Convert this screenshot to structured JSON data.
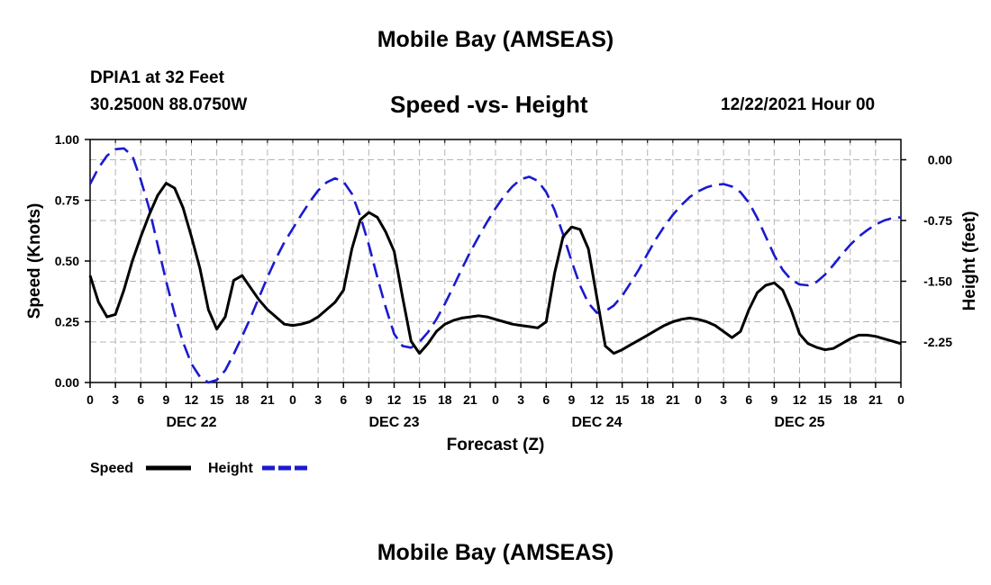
{
  "header": {
    "title": "Mobile Bay (AMSEAS)",
    "station": "DPIA1 at 32 Feet",
    "coords": "30.2500N  88.0750W",
    "subtitle": "Speed -vs- Height",
    "datetime": "12/22/2021 Hour 00"
  },
  "footer": {
    "title": "Mobile Bay (AMSEAS)"
  },
  "colors": {
    "speed": "#000000",
    "height": "#1a1ad0",
    "grid": "#b4b4b4"
  },
  "chart_data": {
    "type": "line",
    "title": "Speed -vs- Height",
    "xlabel": "Forecast (Z)",
    "ylabel": "Speed (Knots)",
    "y2label": "Height (feet)",
    "xlim": [
      0,
      96
    ],
    "ylim": [
      0,
      1
    ],
    "y2lim": [
      -2.75,
      0.25
    ],
    "x_ticks": [
      0,
      3,
      6,
      9,
      12,
      15,
      18,
      21,
      24,
      27,
      30,
      33,
      36,
      39,
      42,
      45,
      48,
      51,
      54,
      57,
      60,
      63,
      66,
      69,
      72,
      75,
      78,
      81,
      84,
      87,
      90,
      93,
      96
    ],
    "x_tick_labels": [
      "0",
      "3",
      "6",
      "9",
      "12",
      "15",
      "18",
      "21",
      "0",
      "3",
      "6",
      "9",
      "12",
      "15",
      "18",
      "21",
      "0",
      "3",
      "6",
      "9",
      "12",
      "15",
      "18",
      "21",
      "0",
      "3",
      "6",
      "9",
      "12",
      "15",
      "18",
      "21",
      "0"
    ],
    "day_labels": [
      {
        "x": 12,
        "label": "DEC 22"
      },
      {
        "x": 36,
        "label": "DEC 23"
      },
      {
        "x": 60,
        "label": "DEC 24"
      },
      {
        "x": 84,
        "label": "DEC 25"
      }
    ],
    "y_ticks": [
      0,
      0.25,
      0.5,
      0.75,
      1.0
    ],
    "y_tick_labels": [
      "0.00",
      "0.25",
      "0.50",
      "0.75",
      "1.00"
    ],
    "y2_ticks": [
      0,
      -0.75,
      -1.5,
      -2.25
    ],
    "y2_tick_labels": [
      "0.00",
      "-0.75",
      "-1.50",
      "-2.25"
    ],
    "legend": [
      {
        "name": "Speed",
        "style": "solid"
      },
      {
        "name": "Height",
        "style": "dashed"
      }
    ],
    "series": [
      {
        "name": "Speed",
        "axis": "left",
        "points": [
          [
            0,
            0.44
          ],
          [
            1,
            0.33
          ],
          [
            2,
            0.27
          ],
          [
            3,
            0.28
          ],
          [
            4,
            0.38
          ],
          [
            5,
            0.5
          ],
          [
            6,
            0.6
          ],
          [
            7,
            0.69
          ],
          [
            8,
            0.77
          ],
          [
            9,
            0.82
          ],
          [
            10,
            0.8
          ],
          [
            11,
            0.72
          ],
          [
            12,
            0.6
          ],
          [
            13,
            0.47
          ],
          [
            14,
            0.3
          ],
          [
            15,
            0.22
          ],
          [
            16,
            0.27
          ],
          [
            17,
            0.42
          ],
          [
            18,
            0.44
          ],
          [
            19,
            0.39
          ],
          [
            20,
            0.34
          ],
          [
            21,
            0.3
          ],
          [
            22,
            0.27
          ],
          [
            23,
            0.24
          ],
          [
            24,
            0.235
          ],
          [
            25,
            0.24
          ],
          [
            26,
            0.25
          ],
          [
            27,
            0.27
          ],
          [
            28,
            0.3
          ],
          [
            29,
            0.33
          ],
          [
            30,
            0.38
          ],
          [
            31,
            0.55
          ],
          [
            32,
            0.67
          ],
          [
            33,
            0.7
          ],
          [
            34,
            0.68
          ],
          [
            35,
            0.62
          ],
          [
            36,
            0.54
          ],
          [
            37,
            0.35
          ],
          [
            38,
            0.17
          ],
          [
            39,
            0.12
          ],
          [
            40,
            0.16
          ],
          [
            41,
            0.21
          ],
          [
            42,
            0.24
          ],
          [
            43,
            0.255
          ],
          [
            44,
            0.265
          ],
          [
            45,
            0.27
          ],
          [
            46,
            0.275
          ],
          [
            47,
            0.27
          ],
          [
            48,
            0.26
          ],
          [
            49,
            0.25
          ],
          [
            50,
            0.24
          ],
          [
            51,
            0.235
          ],
          [
            52,
            0.23
          ],
          [
            53,
            0.225
          ],
          [
            54,
            0.25
          ],
          [
            55,
            0.45
          ],
          [
            56,
            0.6
          ],
          [
            57,
            0.64
          ],
          [
            58,
            0.63
          ],
          [
            59,
            0.55
          ],
          [
            60,
            0.35
          ],
          [
            61,
            0.15
          ],
          [
            62,
            0.12
          ],
          [
            63,
            0.135
          ],
          [
            64,
            0.155
          ],
          [
            65,
            0.175
          ],
          [
            66,
            0.195
          ],
          [
            67,
            0.215
          ],
          [
            68,
            0.235
          ],
          [
            69,
            0.25
          ],
          [
            70,
            0.26
          ],
          [
            71,
            0.265
          ],
          [
            72,
            0.26
          ],
          [
            73,
            0.25
          ],
          [
            74,
            0.235
          ],
          [
            75,
            0.21
          ],
          [
            76,
            0.185
          ],
          [
            77,
            0.21
          ],
          [
            78,
            0.3
          ],
          [
            79,
            0.37
          ],
          [
            80,
            0.4
          ],
          [
            81,
            0.41
          ],
          [
            82,
            0.38
          ],
          [
            83,
            0.3
          ],
          [
            84,
            0.2
          ],
          [
            85,
            0.16
          ],
          [
            86,
            0.145
          ],
          [
            87,
            0.135
          ],
          [
            88,
            0.14
          ],
          [
            89,
            0.16
          ],
          [
            90,
            0.18
          ],
          [
            91,
            0.195
          ],
          [
            92,
            0.195
          ],
          [
            93,
            0.19
          ],
          [
            94,
            0.18
          ],
          [
            95,
            0.17
          ],
          [
            96,
            0.16
          ]
        ]
      },
      {
        "name": "Height",
        "axis": "right",
        "points": [
          [
            0,
            -0.3
          ],
          [
            1,
            -0.1
          ],
          [
            2,
            0.05
          ],
          [
            3,
            0.13
          ],
          [
            4,
            0.14
          ],
          [
            5,
            0.05
          ],
          [
            6,
            -0.25
          ],
          [
            7,
            -0.6
          ],
          [
            8,
            -1.05
          ],
          [
            9,
            -1.5
          ],
          [
            10,
            -1.9
          ],
          [
            11,
            -2.25
          ],
          [
            12,
            -2.52
          ],
          [
            13,
            -2.68
          ],
          [
            14,
            -2.75
          ],
          [
            15,
            -2.72
          ],
          [
            16,
            -2.6
          ],
          [
            17,
            -2.4
          ],
          [
            18,
            -2.18
          ],
          [
            19,
            -1.95
          ],
          [
            20,
            -1.7
          ],
          [
            21,
            -1.45
          ],
          [
            22,
            -1.22
          ],
          [
            23,
            -1.02
          ],
          [
            24,
            -0.85
          ],
          [
            25,
            -0.68
          ],
          [
            26,
            -0.52
          ],
          [
            27,
            -0.38
          ],
          [
            28,
            -0.28
          ],
          [
            29,
            -0.23
          ],
          [
            30,
            -0.27
          ],
          [
            31,
            -0.42
          ],
          [
            32,
            -0.7
          ],
          [
            33,
            -1.05
          ],
          [
            34,
            -1.45
          ],
          [
            35,
            -1.82
          ],
          [
            36,
            -2.15
          ],
          [
            37,
            -2.3
          ],
          [
            38,
            -2.32
          ],
          [
            39,
            -2.25
          ],
          [
            40,
            -2.13
          ],
          [
            41,
            -1.97
          ],
          [
            42,
            -1.78
          ],
          [
            43,
            -1.57
          ],
          [
            44,
            -1.35
          ],
          [
            45,
            -1.14
          ],
          [
            46,
            -0.95
          ],
          [
            47,
            -0.77
          ],
          [
            48,
            -0.6
          ],
          [
            49,
            -0.45
          ],
          [
            50,
            -0.33
          ],
          [
            51,
            -0.24
          ],
          [
            52,
            -0.21
          ],
          [
            53,
            -0.26
          ],
          [
            54,
            -0.4
          ],
          [
            55,
            -0.62
          ],
          [
            56,
            -0.92
          ],
          [
            57,
            -1.25
          ],
          [
            58,
            -1.55
          ],
          [
            59,
            -1.77
          ],
          [
            60,
            -1.89
          ],
          [
            61,
            -1.87
          ],
          [
            62,
            -1.8
          ],
          [
            63,
            -1.68
          ],
          [
            64,
            -1.52
          ],
          [
            65,
            -1.35
          ],
          [
            66,
            -1.16
          ],
          [
            67,
            -0.98
          ],
          [
            68,
            -0.82
          ],
          [
            69,
            -0.68
          ],
          [
            70,
            -0.56
          ],
          [
            71,
            -0.46
          ],
          [
            72,
            -0.39
          ],
          [
            73,
            -0.34
          ],
          [
            74,
            -0.31
          ],
          [
            75,
            -0.3
          ],
          [
            76,
            -0.33
          ],
          [
            77,
            -0.4
          ],
          [
            78,
            -0.53
          ],
          [
            79,
            -0.72
          ],
          [
            80,
            -0.95
          ],
          [
            81,
            -1.18
          ],
          [
            82,
            -1.36
          ],
          [
            83,
            -1.48
          ],
          [
            84,
            -1.54
          ],
          [
            85,
            -1.55
          ],
          [
            86,
            -1.51
          ],
          [
            87,
            -1.42
          ],
          [
            88,
            -1.3
          ],
          [
            89,
            -1.17
          ],
          [
            90,
            -1.05
          ],
          [
            91,
            -0.95
          ],
          [
            92,
            -0.87
          ],
          [
            93,
            -0.8
          ],
          [
            94,
            -0.75
          ],
          [
            95,
            -0.72
          ],
          [
            96,
            -0.71
          ]
        ]
      }
    ]
  }
}
